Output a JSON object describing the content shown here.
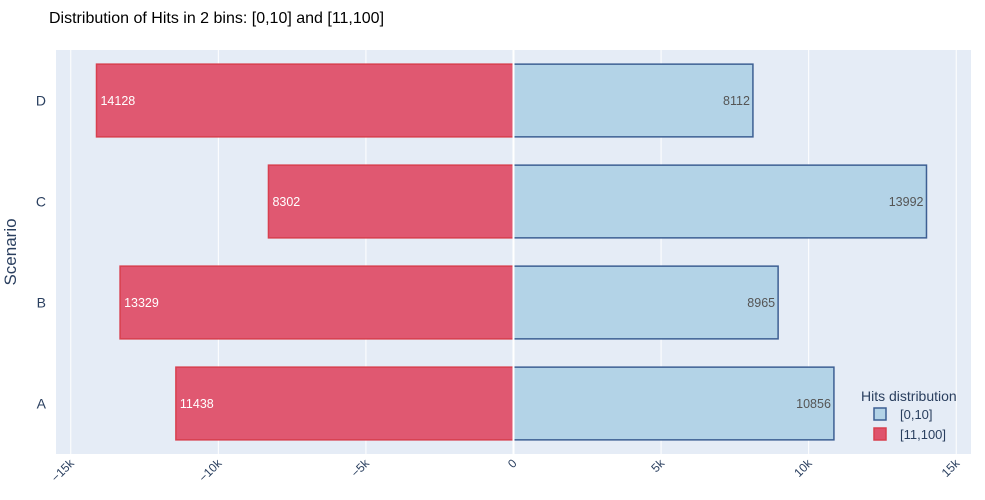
{
  "chart_data": {
    "type": "bar",
    "orientation": "horizontal",
    "barmode": "relative",
    "title": "Distribution of Hits in 2 bins: [0,10] and [11,100]",
    "ylabel": "Scenario",
    "xlabel": "",
    "categories": [
      "A",
      "B",
      "C",
      "D"
    ],
    "series": [
      {
        "name": "[0,10]",
        "values": [
          10856,
          8965,
          13992,
          8112
        ],
        "color": "#b3d3e7",
        "border": "#3d5f93",
        "label_color": "#555555"
      },
      {
        "name": "[11,100]",
        "values": [
          -11438,
          -13329,
          -8302,
          -14128
        ],
        "display_values": [
          "11438",
          "13329",
          "8302",
          "14128"
        ],
        "color": "#df536c",
        "border": "#d8404f",
        "label_color": "#ffffff"
      }
    ],
    "xlim": [
      -15500,
      15500
    ],
    "x_ticks": [
      -15000,
      -10000,
      -5000,
      0,
      5000,
      10000,
      15000
    ],
    "x_tick_labels": [
      "−15k",
      "−10k",
      "−5k",
      "0",
      "5k",
      "10k",
      "15k"
    ],
    "legend_title": "Hits distribution",
    "legend_position": "bottom-right",
    "grid": true,
    "plot_bg": "#e5ecf6"
  }
}
